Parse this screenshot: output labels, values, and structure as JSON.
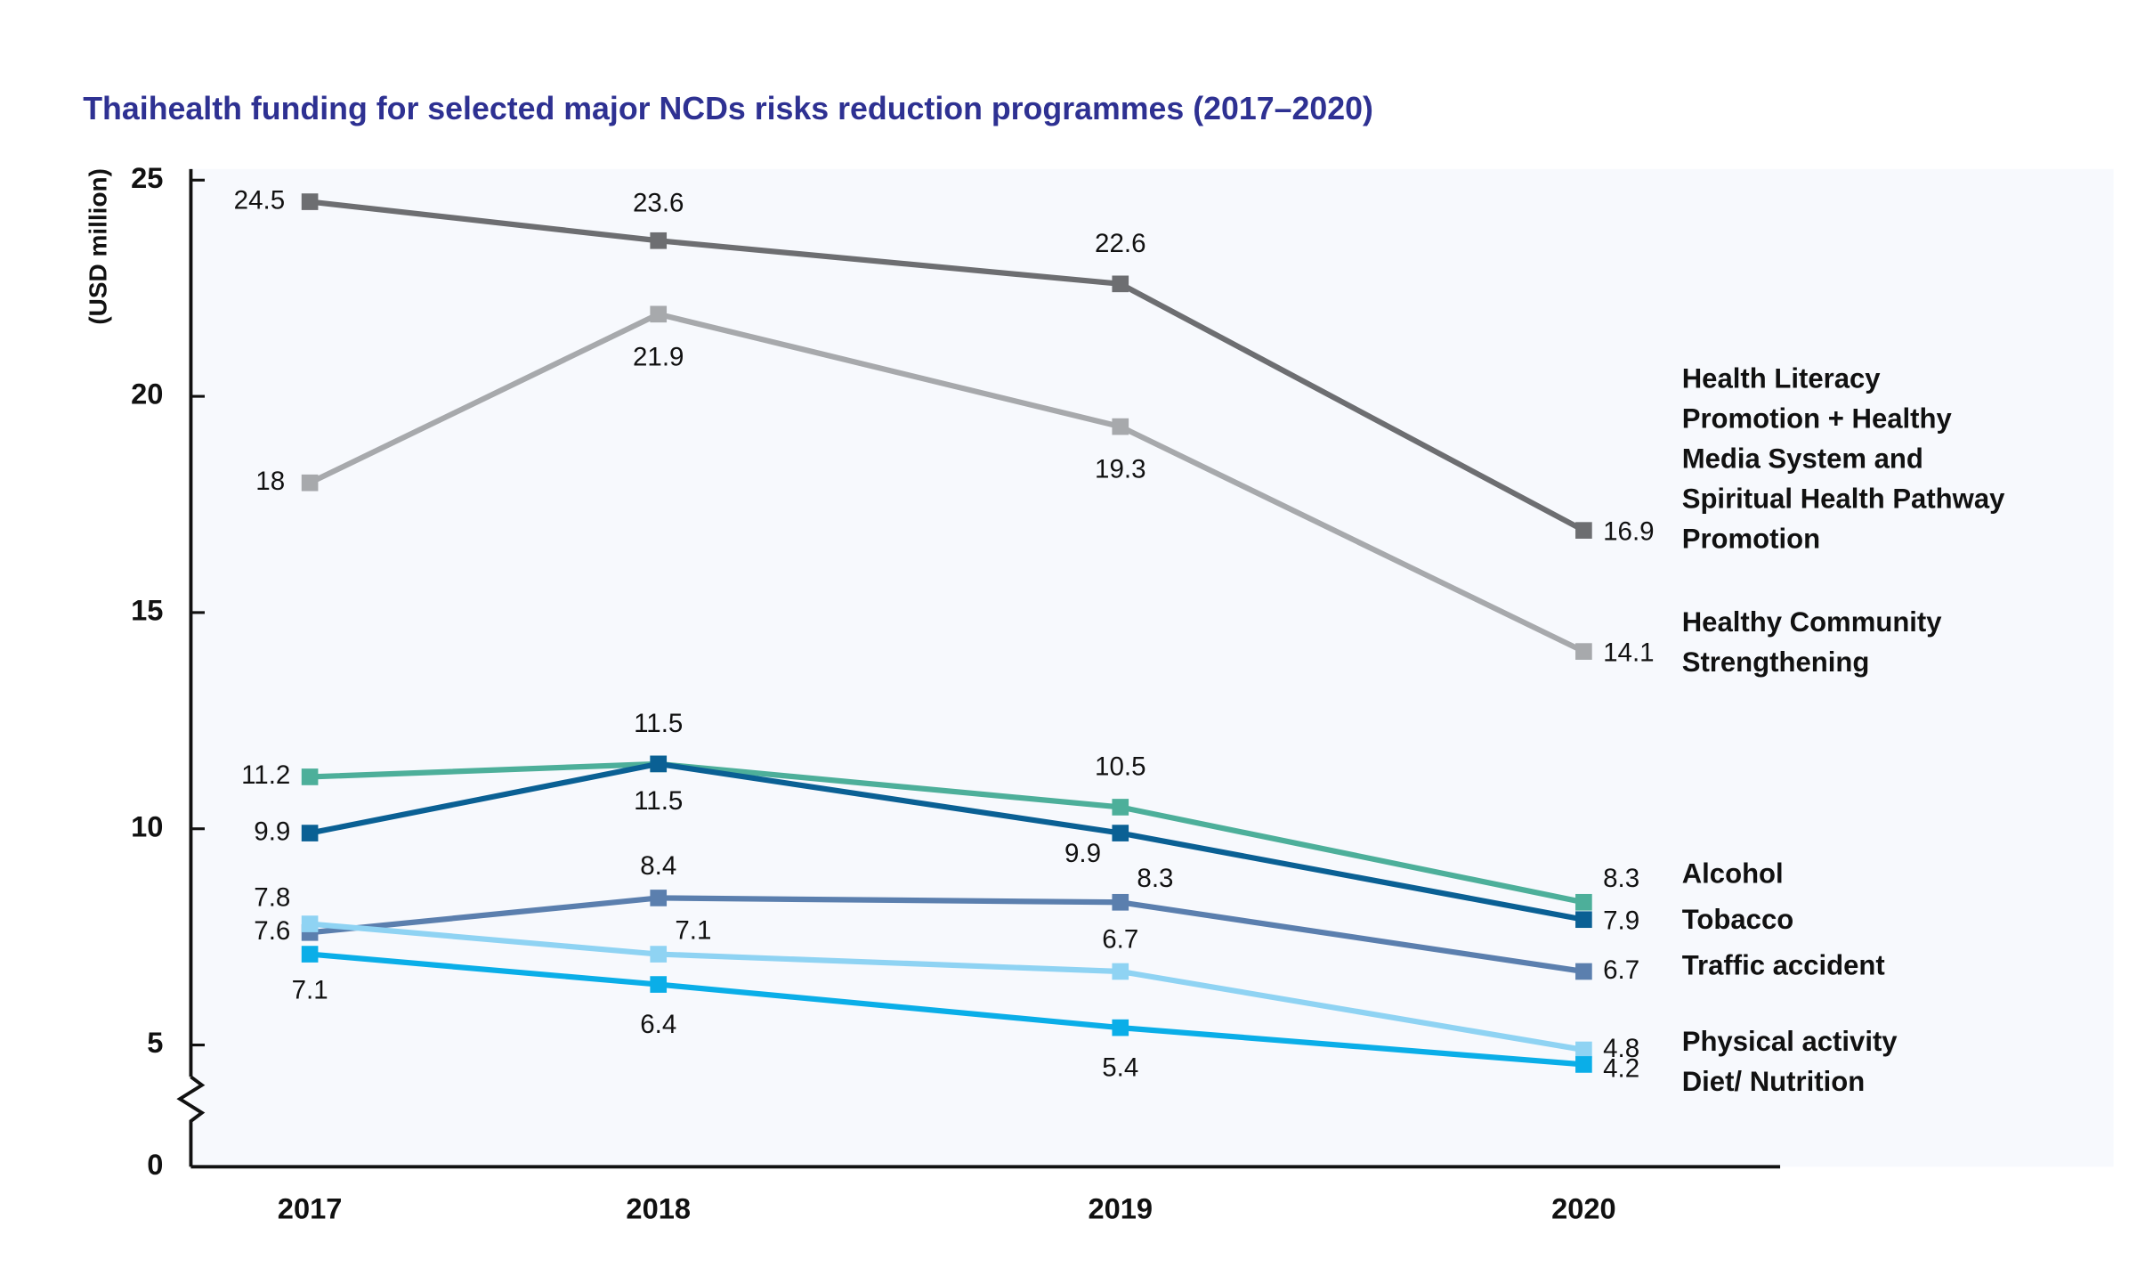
{
  "chart_data": {
    "type": "line",
    "title": "Thaihealth funding for selected major NCDs risks reduction programmes (2017–2020)",
    "y_label": "(USD million)",
    "categories": [
      "2017",
      "2018",
      "2019",
      "2020"
    ],
    "ylim": [
      0,
      25
    ],
    "yticks": [
      0,
      5,
      10,
      15,
      20,
      25
    ],
    "axis_break": true,
    "series": [
      {
        "name": "Health Literacy Promotion + Healthy Media System and Spiritual Health Pathway Promotion",
        "color": "#6d6e71",
        "values": [
          24.5,
          23.6,
          22.6,
          16.9
        ]
      },
      {
        "name": "Healthy Community Strengthening",
        "color": "#a7a9ac",
        "values": [
          18,
          21.9,
          19.3,
          14.1
        ]
      },
      {
        "name": "Alcohol",
        "color": "#4daf9a",
        "values": [
          11.2,
          11.5,
          10.5,
          8.3
        ]
      },
      {
        "name": "Tobacco",
        "color": "#0a6094",
        "values": [
          9.9,
          11.5,
          9.9,
          7.9
        ]
      },
      {
        "name": "Traffic accident",
        "color": "#5b7fae",
        "values": [
          7.6,
          8.4,
          8.3,
          6.7
        ]
      },
      {
        "name": "Physical activity",
        "color": "#8fd3f3",
        "values": [
          7.8,
          7.1,
          6.7,
          4.8
        ]
      },
      {
        "name": "Diet/ Nutrition",
        "color": "#0aaee8",
        "values": [
          7.1,
          6.4,
          5.4,
          4.2
        ]
      }
    ]
  }
}
